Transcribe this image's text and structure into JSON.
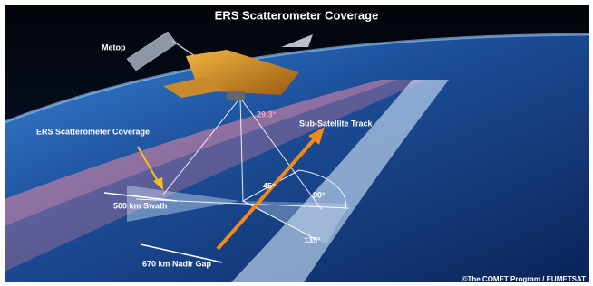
{
  "title": "ERS Scatterometer Coverage",
  "labels": {
    "satellite": "Metop",
    "incidence_angle": "29.3°",
    "track": "Sub-Satellite Track",
    "coverage": "ERS Scatterometer Coverage",
    "angle_45": "45°",
    "angle_90": "90°",
    "swath": "500 km Swath",
    "angle_135": "135°",
    "nadir_gap": "670 km Nadir Gap"
  },
  "credit": "©The COMET Program / EUMETSAT"
}
